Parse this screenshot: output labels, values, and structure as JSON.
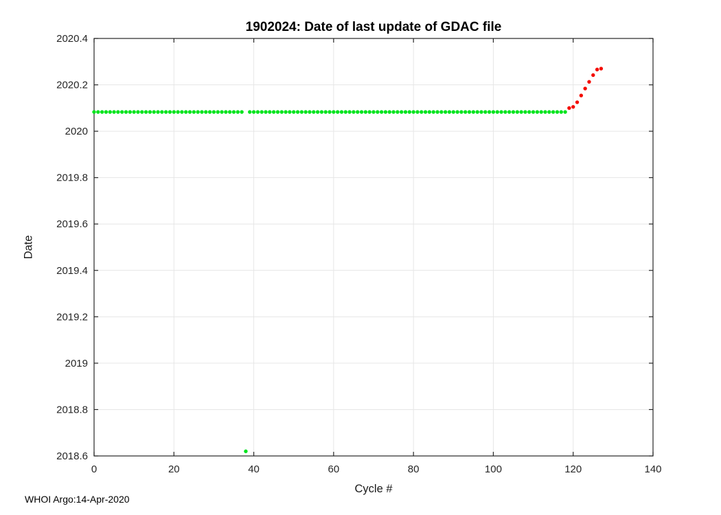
{
  "figure": {
    "footer": "WHOI Argo:14-Apr-2020"
  },
  "chart_data": {
    "type": "scatter",
    "title": "1902024: Date of last update of GDAC file",
    "xlabel": "Cycle #",
    "ylabel": "Date",
    "xlim": [
      0,
      140
    ],
    "ylim": [
      2018.6,
      2020.4
    ],
    "xticks": [
      0,
      20,
      40,
      60,
      80,
      100,
      120,
      140
    ],
    "yticks": [
      2018.6,
      2018.8,
      2019,
      2019.2,
      2019.4,
      2019.6,
      2019.8,
      2020,
      2020.2,
      2020.4
    ],
    "grid": true,
    "legend_position": "none",
    "marker": "dot",
    "colors": {
      "green": "#00e41e",
      "red": "#f40b00",
      "grid": "#e6e6e6",
      "axis": "#262626"
    },
    "series": [
      {
        "name": "green",
        "color": "#00e41e",
        "points": [
          [
            0,
            2020.083
          ],
          [
            1,
            2020.083
          ],
          [
            2,
            2020.083
          ],
          [
            3,
            2020.083
          ],
          [
            4,
            2020.083
          ],
          [
            5,
            2020.083
          ],
          [
            6,
            2020.083
          ],
          [
            7,
            2020.083
          ],
          [
            8,
            2020.083
          ],
          [
            9,
            2020.083
          ],
          [
            10,
            2020.083
          ],
          [
            11,
            2020.083
          ],
          [
            12,
            2020.083
          ],
          [
            13,
            2020.083
          ],
          [
            14,
            2020.083
          ],
          [
            15,
            2020.083
          ],
          [
            16,
            2020.083
          ],
          [
            17,
            2020.083
          ],
          [
            18,
            2020.083
          ],
          [
            19,
            2020.083
          ],
          [
            20,
            2020.083
          ],
          [
            21,
            2020.083
          ],
          [
            22,
            2020.083
          ],
          [
            23,
            2020.083
          ],
          [
            24,
            2020.083
          ],
          [
            25,
            2020.083
          ],
          [
            26,
            2020.083
          ],
          [
            27,
            2020.083
          ],
          [
            28,
            2020.083
          ],
          [
            29,
            2020.083
          ],
          [
            30,
            2020.083
          ],
          [
            31,
            2020.083
          ],
          [
            32,
            2020.083
          ],
          [
            33,
            2020.083
          ],
          [
            34,
            2020.083
          ],
          [
            35,
            2020.083
          ],
          [
            36,
            2020.083
          ],
          [
            37,
            2020.083
          ],
          [
            38,
            2018.62
          ],
          [
            39,
            2020.083
          ],
          [
            40,
            2020.083
          ],
          [
            41,
            2020.083
          ],
          [
            42,
            2020.083
          ],
          [
            43,
            2020.083
          ],
          [
            44,
            2020.083
          ],
          [
            45,
            2020.083
          ],
          [
            46,
            2020.083
          ],
          [
            47,
            2020.083
          ],
          [
            48,
            2020.083
          ],
          [
            49,
            2020.083
          ],
          [
            50,
            2020.083
          ],
          [
            51,
            2020.083
          ],
          [
            52,
            2020.083
          ],
          [
            53,
            2020.083
          ],
          [
            54,
            2020.083
          ],
          [
            55,
            2020.083
          ],
          [
            56,
            2020.083
          ],
          [
            57,
            2020.083
          ],
          [
            58,
            2020.083
          ],
          [
            59,
            2020.083
          ],
          [
            60,
            2020.083
          ],
          [
            61,
            2020.083
          ],
          [
            62,
            2020.083
          ],
          [
            63,
            2020.083
          ],
          [
            64,
            2020.083
          ],
          [
            65,
            2020.083
          ],
          [
            66,
            2020.083
          ],
          [
            67,
            2020.083
          ],
          [
            68,
            2020.083
          ],
          [
            69,
            2020.083
          ],
          [
            70,
            2020.083
          ],
          [
            71,
            2020.083
          ],
          [
            72,
            2020.083
          ],
          [
            73,
            2020.083
          ],
          [
            74,
            2020.083
          ],
          [
            75,
            2020.083
          ],
          [
            76,
            2020.083
          ],
          [
            77,
            2020.083
          ],
          [
            78,
            2020.083
          ],
          [
            79,
            2020.083
          ],
          [
            80,
            2020.083
          ],
          [
            81,
            2020.083
          ],
          [
            82,
            2020.083
          ],
          [
            83,
            2020.083
          ],
          [
            84,
            2020.083
          ],
          [
            85,
            2020.083
          ],
          [
            86,
            2020.083
          ],
          [
            87,
            2020.083
          ],
          [
            88,
            2020.083
          ],
          [
            89,
            2020.083
          ],
          [
            90,
            2020.083
          ],
          [
            91,
            2020.083
          ],
          [
            92,
            2020.083
          ],
          [
            93,
            2020.083
          ],
          [
            94,
            2020.083
          ],
          [
            95,
            2020.083
          ],
          [
            96,
            2020.083
          ],
          [
            97,
            2020.083
          ],
          [
            98,
            2020.083
          ],
          [
            99,
            2020.083
          ],
          [
            100,
            2020.083
          ],
          [
            101,
            2020.083
          ],
          [
            102,
            2020.083
          ],
          [
            103,
            2020.083
          ],
          [
            104,
            2020.083
          ],
          [
            105,
            2020.083
          ],
          [
            106,
            2020.083
          ],
          [
            107,
            2020.083
          ],
          [
            108,
            2020.083
          ],
          [
            109,
            2020.083
          ],
          [
            110,
            2020.083
          ],
          [
            111,
            2020.083
          ],
          [
            112,
            2020.083
          ],
          [
            113,
            2020.083
          ],
          [
            114,
            2020.083
          ],
          [
            115,
            2020.083
          ],
          [
            116,
            2020.083
          ],
          [
            117,
            2020.083
          ],
          [
            118,
            2020.083
          ]
        ]
      },
      {
        "name": "red",
        "color": "#f40b00",
        "points": [
          [
            119,
            2020.1
          ],
          [
            120,
            2020.105
          ],
          [
            121,
            2020.125
          ],
          [
            122,
            2020.154
          ],
          [
            123,
            2020.184
          ],
          [
            124,
            2020.213
          ],
          [
            125,
            2020.242
          ],
          [
            126,
            2020.266
          ],
          [
            127,
            2020.27
          ]
        ]
      }
    ]
  }
}
